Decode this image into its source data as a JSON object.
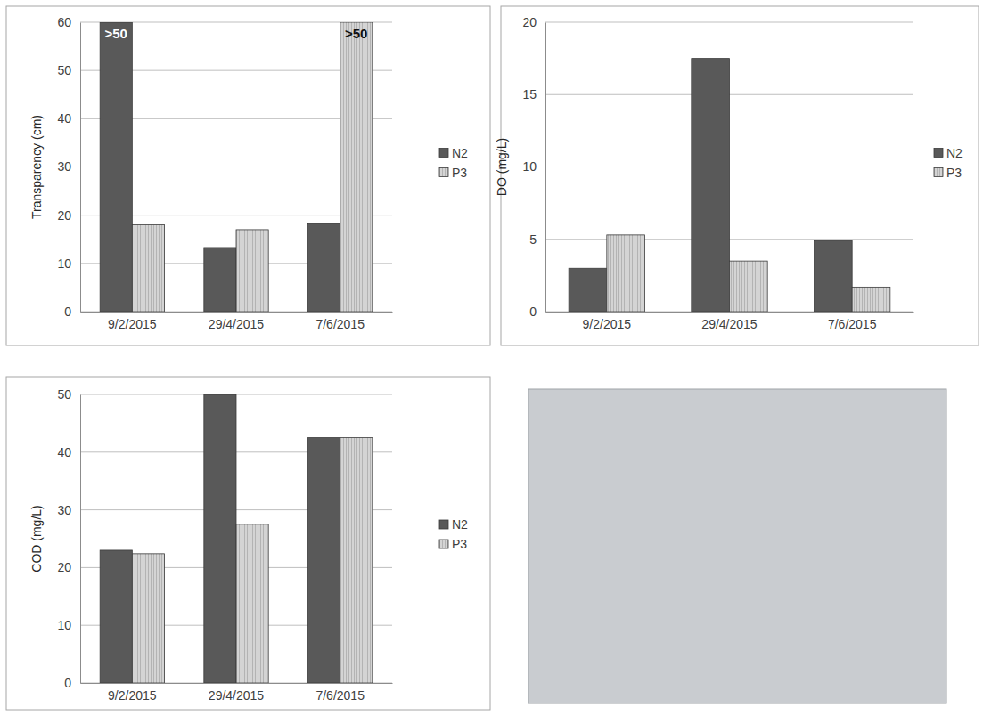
{
  "chart_data": [
    {
      "type": "bar",
      "y_label": "Transparency (cm)",
      "categories": [
        "9/2/2015",
        "29/4/2015",
        "7/6/2015"
      ],
      "series": [
        {
          "name": "N2",
          "color": "#595959",
          "values": [
            60,
            13.3,
            18.2
          ],
          "value_labels": [
            ">50",
            null,
            null
          ]
        },
        {
          "name": "P3",
          "color": "#d4d4d4",
          "values": [
            18,
            17,
            60
          ],
          "value_labels": [
            null,
            null,
            ">50"
          ]
        }
      ],
      "ylim": [
        0,
        60
      ],
      "yticks": [
        0,
        10,
        20,
        30,
        40,
        50,
        60
      ],
      "grid": true,
      "legend": "right",
      "data_labels": true
    },
    {
      "type": "bar",
      "y_label": "DO (mg/L)",
      "categories": [
        "9/2/2015",
        "29/4/2015",
        "7/6/2015"
      ],
      "series": [
        {
          "name": "N2",
          "color": "#595959",
          "values": [
            3.0,
            17.5,
            4.9
          ]
        },
        {
          "name": "P3",
          "color": "#d4d4d4",
          "values": [
            5.3,
            3.5,
            1.7
          ]
        }
      ],
      "ylim": [
        0,
        20
      ],
      "yticks": [
        0,
        5,
        10,
        15,
        20
      ],
      "grid": true,
      "legend": "right"
    },
    {
      "type": "bar",
      "y_label": "COD (mg/L)",
      "categories": [
        "9/2/2015",
        "29/4/2015",
        "7/6/2015"
      ],
      "series": [
        {
          "name": "N2",
          "color": "#595959",
          "values": [
            23,
            50,
            42.5
          ]
        },
        {
          "name": "P3",
          "color": "#d4d4d4",
          "values": [
            22.4,
            27.5,
            42.5
          ]
        }
      ],
      "ylim": [
        0,
        50
      ],
      "yticks": [
        0,
        10,
        20,
        30,
        40,
        50
      ],
      "grid": true,
      "legend": "right"
    }
  ]
}
